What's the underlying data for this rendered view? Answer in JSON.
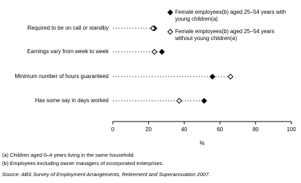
{
  "chart_data": {
    "type": "dot",
    "categories": [
      "Required to be on call or standby",
      "Earnings vary from week to week",
      "Minimum number of hours guaranteed",
      "Has some say in days worked"
    ],
    "series": [
      {
        "name": "Female employees(b) aged 25–54 years with young children(a)",
        "color": "#000000",
        "marker": "filled-diamond",
        "values": [
          23.3,
          27.5,
          55.8,
          51.2
        ]
      },
      {
        "name": "Female employees(b) aged 25–54 years without young children(a)",
        "color": "#000000",
        "marker": "open-diamond",
        "values": [
          22.5,
          23.3,
          65.9,
          37.2
        ]
      }
    ],
    "xlim": [
      0,
      100
    ],
    "xticks": [
      0,
      20,
      40,
      60,
      80,
      100
    ],
    "xlabel": "%",
    "footnotes": [
      "(a) Children aged 0–4 years living in the same household.",
      "(b) Employees excluding owner managers of incorporated enterprises."
    ],
    "source": "Source: ABS Survey of Employment Arrangements, Retirement and Superannuation 2007."
  }
}
